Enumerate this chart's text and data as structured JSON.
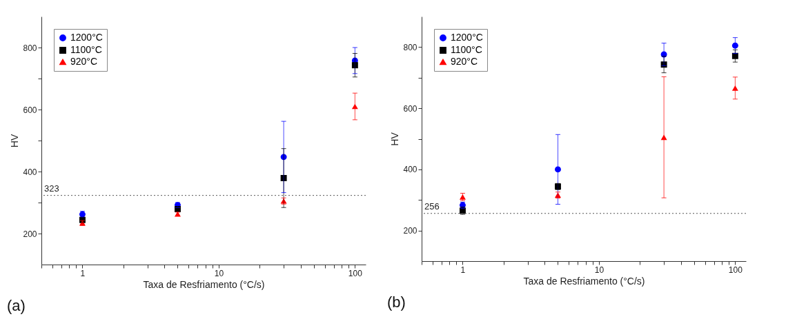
{
  "chart_data": [
    {
      "type": "scatter",
      "xlabel": "Taxa de Resfriamento (°C/s)",
      "ylabel": "HV",
      "log": "x",
      "grid": false,
      "legend": "top left",
      "annotations": [
        "(a)"
      ],
      "xlim": [
        0.5,
        120
      ],
      "xticks": [
        {
          "value": 0.5,
          "label": null
        },
        {
          "value": 0.6,
          "label": null
        },
        {
          "value": 0.7,
          "label": null
        },
        {
          "value": 0.8,
          "label": null
        },
        {
          "value": 0.9,
          "label": null
        },
        1,
        {
          "value": 2,
          "label": null
        },
        {
          "value": 3,
          "label": null
        },
        {
          "value": 4,
          "label": null
        },
        {
          "value": 5,
          "label": null
        },
        {
          "value": 6,
          "label": null
        },
        {
          "value": 7,
          "label": null
        },
        {
          "value": 8,
          "label": null
        },
        {
          "value": 9,
          "label": null
        },
        10,
        {
          "value": 20,
          "label": null
        },
        {
          "value": 30,
          "label": null
        },
        {
          "value": 40,
          "label": null
        },
        {
          "value": 50,
          "label": null
        },
        {
          "value": 60,
          "label": null
        },
        {
          "value": 70,
          "label": null
        },
        {
          "value": 80,
          "label": null
        },
        {
          "value": 90,
          "label": null
        },
        100
      ],
      "ylim": [
        100,
        900
      ],
      "yticks": [
        200,
        {
          "value": 300,
          "label": null
        },
        400,
        {
          "value": 500,
          "label": null
        },
        600,
        {
          "value": 700,
          "label": null
        },
        800
      ],
      "x": [
        1,
        5,
        30,
        100
      ],
      "series": [
        {
          "name": "1200°C",
          "color": "#0000ff",
          "marker": "circle",
          "values": [
            262,
            292,
            447,
            758
          ],
          "errors": [
            10,
            8,
            115,
            42
          ]
        },
        {
          "name": "1100°C",
          "color": "#000000",
          "marker": "square",
          "values": [
            244,
            279,
            379,
            743
          ],
          "errors": [
            8,
            8,
            95,
            38
          ]
        },
        {
          "name": "920°C",
          "color": "#ff0000",
          "marker": "triangle",
          "values": [
            234,
            263,
            305,
            610
          ],
          "errors": [
            8,
            6,
            10,
            43
          ]
        }
      ],
      "ref_lines": [
        {
          "axis": "y",
          "value": 323,
          "label": "323",
          "line_style": "dotted",
          "color": "#555555"
        }
      ]
    },
    {
      "type": "scatter",
      "xlabel": "Taxa de Resfriamento (°C/s)",
      "ylabel": "HV",
      "log": "x",
      "grid": false,
      "legend": "top left",
      "annotations": [
        "(b)"
      ],
      "xlim": [
        0.5,
        120
      ],
      "xticks": [
        {
          "value": 0.5,
          "label": null
        },
        {
          "value": 0.6,
          "label": null
        },
        {
          "value": 0.7,
          "label": null
        },
        {
          "value": 0.8,
          "label": null
        },
        {
          "value": 0.9,
          "label": null
        },
        1,
        {
          "value": 2,
          "label": null
        },
        {
          "value": 3,
          "label": null
        },
        {
          "value": 4,
          "label": null
        },
        {
          "value": 5,
          "label": null
        },
        {
          "value": 6,
          "label": null
        },
        {
          "value": 7,
          "label": null
        },
        {
          "value": 8,
          "label": null
        },
        {
          "value": 9,
          "label": null
        },
        10,
        {
          "value": 20,
          "label": null
        },
        {
          "value": 30,
          "label": null
        },
        {
          "value": 40,
          "label": null
        },
        {
          "value": 50,
          "label": null
        },
        {
          "value": 60,
          "label": null
        },
        {
          "value": 70,
          "label": null
        },
        {
          "value": 80,
          "label": null
        },
        {
          "value": 90,
          "label": null
        },
        100
      ],
      "ylim": [
        100,
        900
      ],
      "yticks": [
        200,
        {
          "value": 300,
          "label": null
        },
        400,
        {
          "value": 500,
          "label": null
        },
        600,
        {
          "value": 700,
          "label": null
        },
        800
      ],
      "x": [
        1,
        5,
        30,
        100
      ],
      "series": [
        {
          "name": "1200°C",
          "color": "#0000ff",
          "marker": "circle",
          "values": [
            283,
            400,
            776,
            805
          ],
          "errors": [
            10,
            114,
            37,
            26
          ]
        },
        {
          "name": "1100°C",
          "color": "#000000",
          "marker": "square",
          "values": [
            265,
            344,
            743,
            771
          ],
          "errors": [
            12,
            10,
            27,
            20
          ]
        },
        {
          "name": "920°C",
          "color": "#ff0000",
          "marker": "triangle",
          "values": [
            310,
            316,
            505,
            666
          ],
          "errors": [
            12,
            10,
            198,
            36
          ]
        }
      ],
      "ref_lines": [
        {
          "axis": "y",
          "value": 256,
          "label": "256",
          "line_style": "dotted",
          "color": "#555555"
        }
      ]
    }
  ]
}
